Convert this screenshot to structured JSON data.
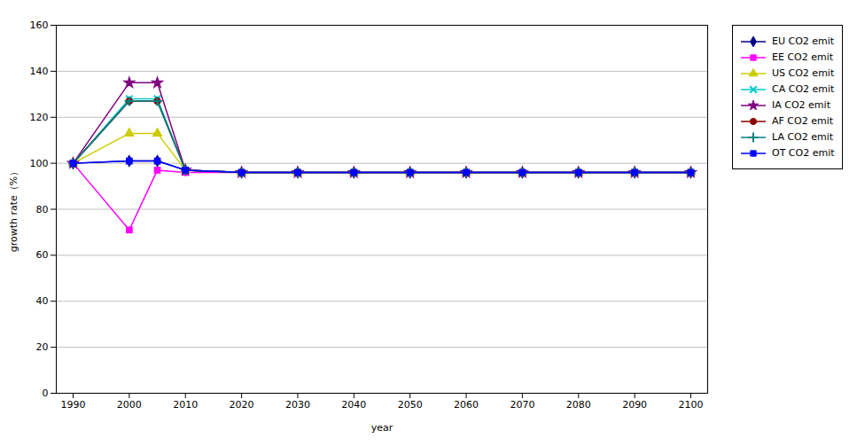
{
  "chart_data": {
    "type": "line",
    "xlabel": "year",
    "ylabel": "growth rate（%）",
    "x": [
      1990,
      2000,
      2005,
      2010,
      2020,
      2030,
      2040,
      2050,
      2060,
      2070,
      2080,
      2090,
      2100
    ],
    "series": [
      {
        "name": "EU CO2 emit",
        "color": "#00008B",
        "marker": "diamond",
        "values": [
          100,
          101,
          101,
          97,
          96,
          96,
          96,
          96,
          96,
          96,
          96,
          96,
          96
        ]
      },
      {
        "name": "EE CO2 emit",
        "color": "#FF00FF",
        "marker": "square",
        "values": [
          100,
          71,
          97,
          96,
          96,
          96,
          96,
          96,
          96,
          96,
          96,
          96,
          96
        ]
      },
      {
        "name": "US CO2 emit",
        "color": "#CCCC00",
        "marker": "triangle",
        "values": [
          100,
          113,
          113,
          97,
          96,
          96,
          96,
          96,
          96,
          96,
          96,
          96,
          96
        ]
      },
      {
        "name": "CA CO2 emit",
        "color": "#00CCCC",
        "marker": "x",
        "values": [
          100,
          128,
          128,
          97,
          96,
          96,
          96,
          96,
          96,
          96,
          96,
          96,
          96
        ]
      },
      {
        "name": "IA CO2 emit",
        "color": "#800080",
        "marker": "star",
        "values": [
          100,
          135,
          135,
          97,
          96,
          96,
          96,
          96,
          96,
          96,
          96,
          96,
          96
        ]
      },
      {
        "name": "AF CO2 emit",
        "color": "#8B0000",
        "marker": "circle",
        "values": [
          100,
          127,
          127,
          97,
          96,
          96,
          96,
          96,
          96,
          96,
          96,
          96,
          96
        ]
      },
      {
        "name": "LA CO2 emit",
        "color": "#008080",
        "marker": "plus",
        "values": [
          100,
          127,
          127,
          97,
          96,
          96,
          96,
          96,
          96,
          96,
          96,
          96,
          96
        ]
      },
      {
        "name": "OT CO2 emit",
        "color": "#0000FF",
        "marker": "square",
        "values": [
          100,
          101,
          101,
          97,
          96,
          96,
          96,
          96,
          96,
          96,
          96,
          96,
          96
        ]
      }
    ],
    "xlim": [
      1987,
      2103
    ],
    "xticks": [
      1990,
      2000,
      2010,
      2020,
      2030,
      2040,
      2050,
      2060,
      2070,
      2080,
      2090,
      2100
    ],
    "ylim": [
      0,
      160
    ],
    "yticks": [
      0,
      20,
      40,
      60,
      80,
      100,
      120,
      140,
      160
    ],
    "grid": "y",
    "legend": "right"
  }
}
